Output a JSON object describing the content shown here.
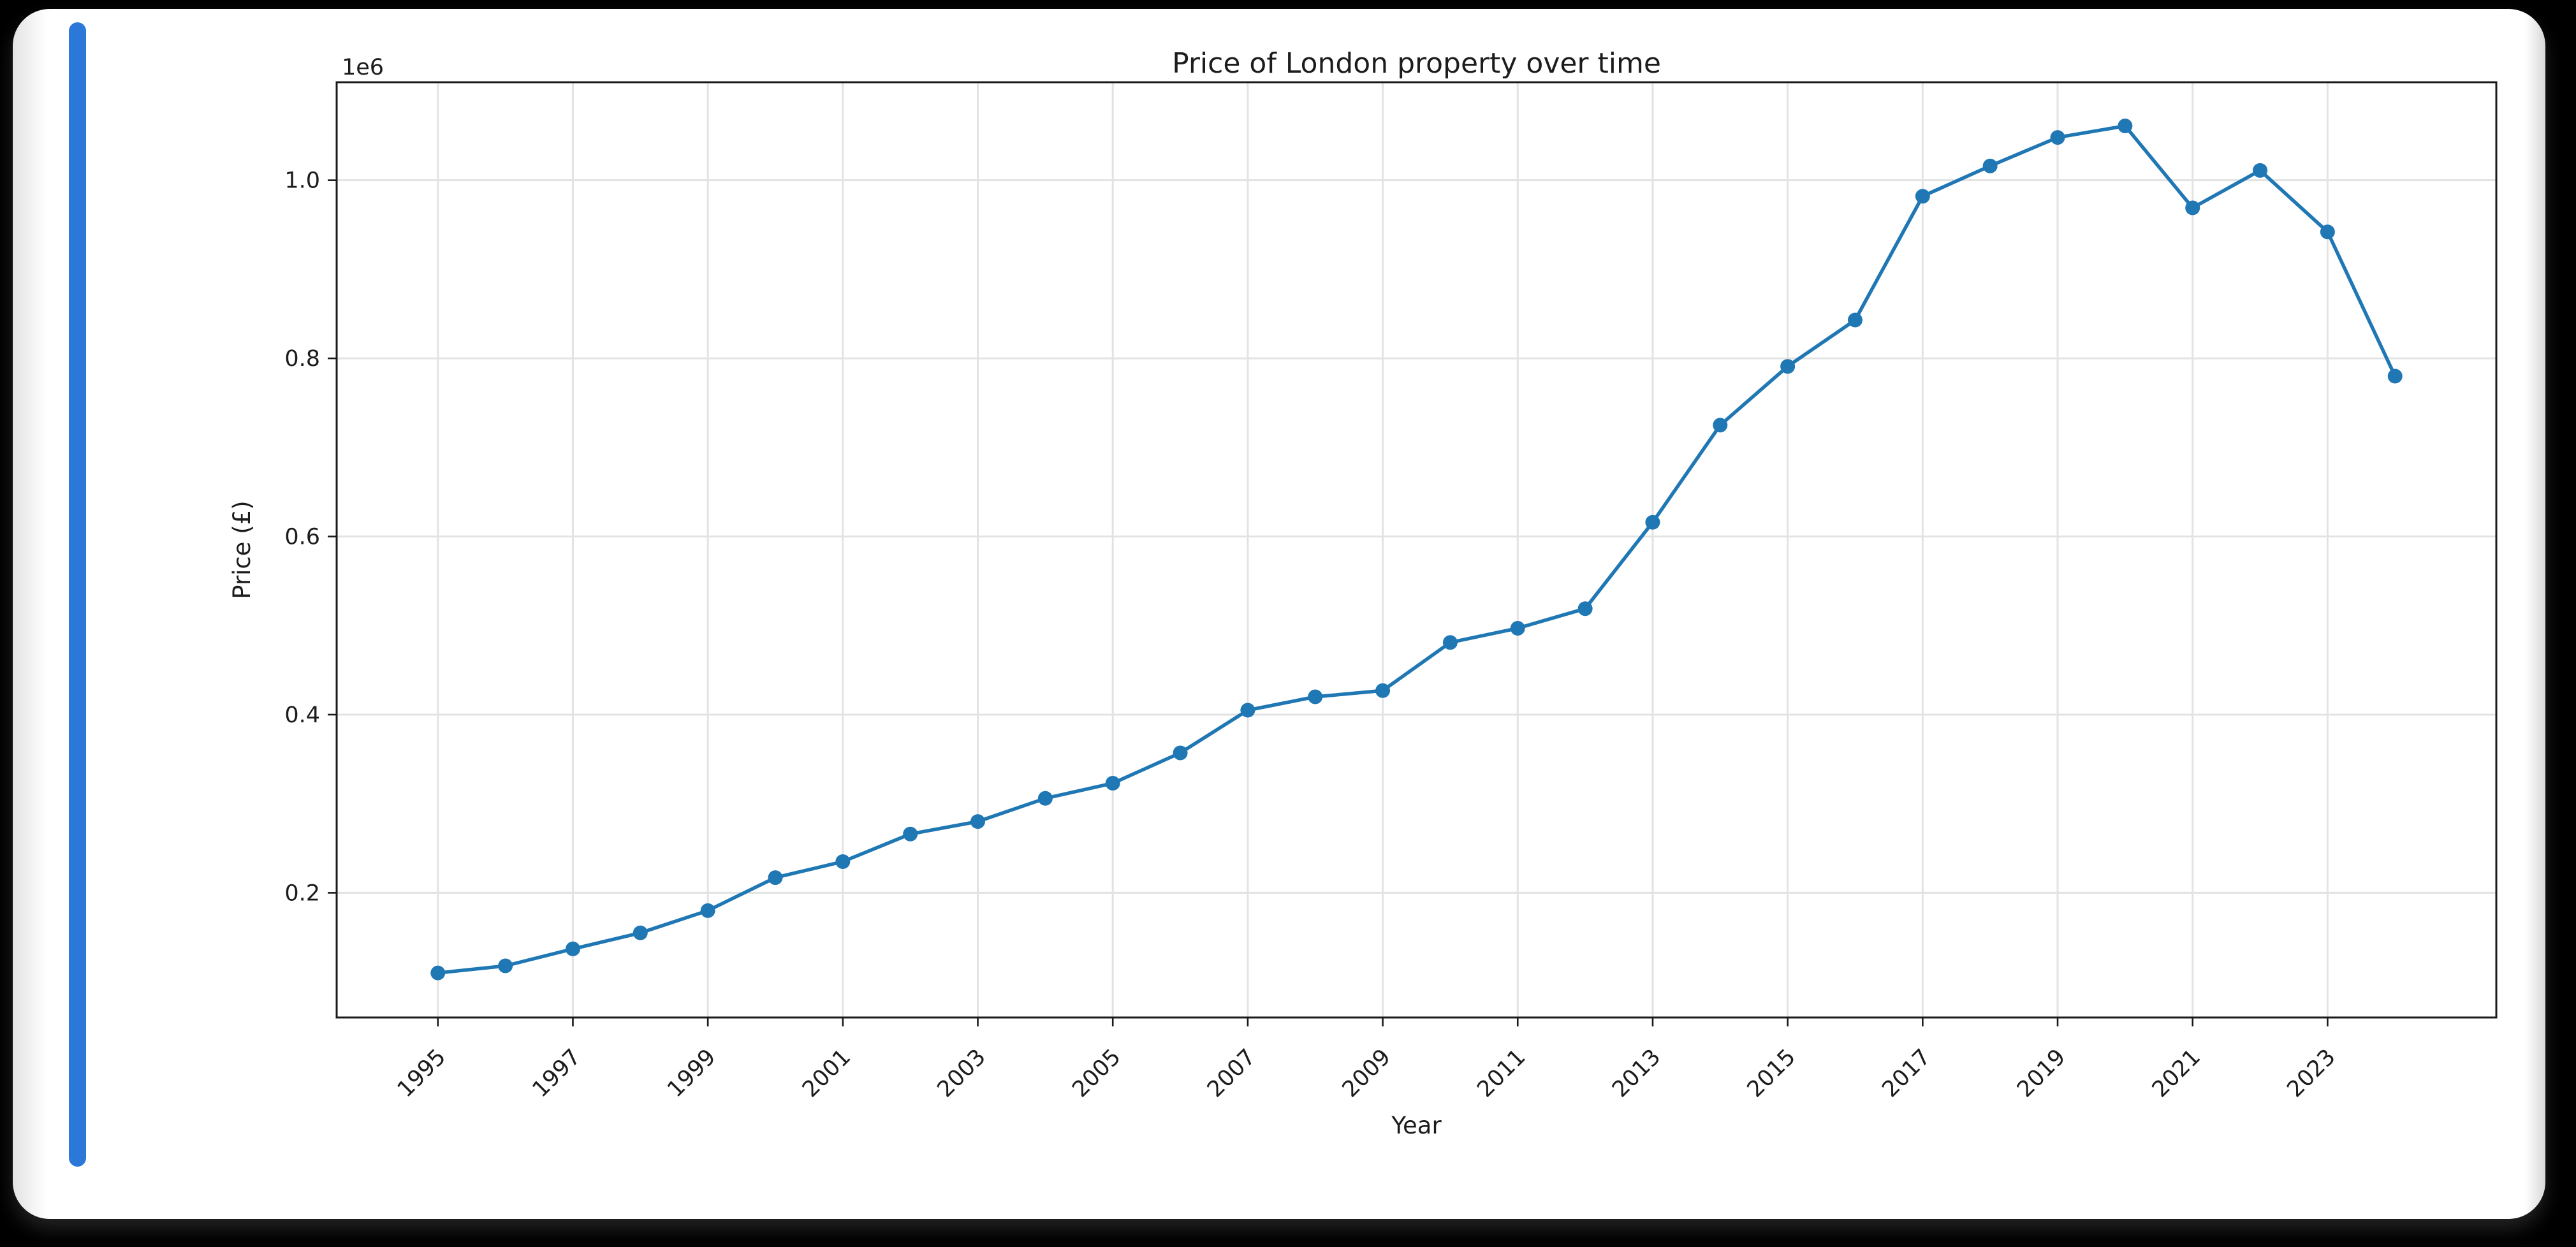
{
  "page": {
    "background_color": "#000000",
    "card_color": "#ffffff",
    "accent_bar_color": "#2b78d8"
  },
  "chart_data": {
    "type": "line",
    "title": "Price of London property over time",
    "xlabel": "Year",
    "ylabel": "Price (£)",
    "y_offset_label": "1e6",
    "line_color": "#1f77b4",
    "marker": "circle",
    "grid": true,
    "grid_color": "#e3e3e3",
    "spine_color": "#1a1a1a",
    "x": [
      1995,
      1996,
      1997,
      1998,
      1999,
      2000,
      2001,
      2002,
      2003,
      2004,
      2005,
      2006,
      2007,
      2008,
      2009,
      2010,
      2011,
      2012,
      2013,
      2014,
      2015,
      2016,
      2017,
      2018,
      2019,
      2020,
      2021,
      2022,
      2023,
      2024
    ],
    "values": [
      110000,
      118000,
      137000,
      155000,
      180000,
      217000,
      235000,
      266000,
      280000,
      306000,
      323000,
      357000,
      405000,
      420000,
      427000,
      481000,
      497000,
      519000,
      616000,
      725000,
      791000,
      843000,
      982000,
      1016000,
      1048000,
      1061000,
      969000,
      1011000,
      942000,
      780000
    ],
    "x_ticks": [
      1995,
      1997,
      1999,
      2001,
      2003,
      2005,
      2007,
      2009,
      2011,
      2013,
      2015,
      2017,
      2019,
      2021,
      2023
    ],
    "x_tick_rotation_deg": 45,
    "y_ticks": [
      200000,
      400000,
      600000,
      800000,
      1000000
    ],
    "y_tick_labels": [
      "0.2",
      "0.4",
      "0.6",
      "0.8",
      "1.0"
    ],
    "xlim": [
      1993.5,
      2025.5
    ],
    "ylim": [
      60000,
      1110000
    ],
    "legend": "none"
  }
}
